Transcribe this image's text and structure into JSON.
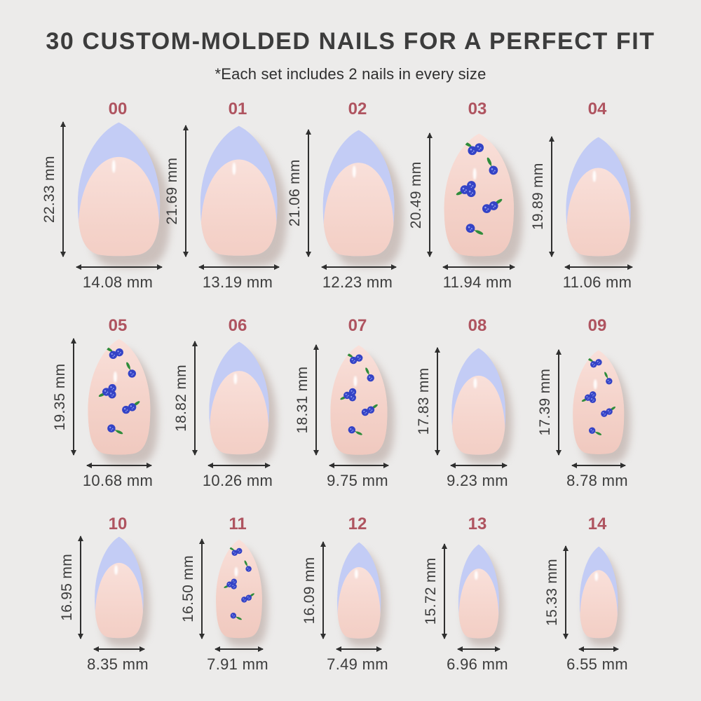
{
  "page": {
    "title": "30 CUSTOM-MOLDED NAILS FOR A PERFECT FIT",
    "subtitle": "*Each set includes 2 nails in every size"
  },
  "colors": {
    "background": "#ECEBEA",
    "title_text": "#3C3C3C",
    "size_number": "#AF5460",
    "measure_text": "#3C3C3C",
    "arrow": "#2F2F2F",
    "french_tip_lavender": "#C3CCF5",
    "nail_pink_light": "#F9E0DA",
    "nail_pink_deep": "#F0C9BF",
    "shadow": "#AC968F",
    "blueberry_blue": "#3443C6",
    "blueberry_speck": "#93A0F0",
    "leaf_green": "#2F8C3B"
  },
  "sizes": [
    {
      "label": "00",
      "height_mm": 22.33,
      "width_mm": 14.08,
      "height_text": "22.33 mm",
      "width_text": "14.08 mm",
      "design": "french-tip"
    },
    {
      "label": "01",
      "height_mm": 21.69,
      "width_mm": 13.19,
      "height_text": "21.69 mm",
      "width_text": "13.19 mm",
      "design": "french-tip"
    },
    {
      "label": "02",
      "height_mm": 21.06,
      "width_mm": 12.23,
      "height_text": "21.06 mm",
      "width_text": "12.23 mm",
      "design": "french-tip"
    },
    {
      "label": "03",
      "height_mm": 20.49,
      "width_mm": 11.94,
      "height_text": "20.49 mm",
      "width_text": "11.94 mm",
      "design": "blueberry"
    },
    {
      "label": "04",
      "height_mm": 19.89,
      "width_mm": 11.06,
      "height_text": "19.89 mm",
      "width_text": "11.06 mm",
      "design": "french-tip"
    },
    {
      "label": "05",
      "height_mm": 19.35,
      "width_mm": 10.68,
      "height_text": "19.35 mm",
      "width_text": "10.68 mm",
      "design": "blueberry"
    },
    {
      "label": "06",
      "height_mm": 18.82,
      "width_mm": 10.26,
      "height_text": "18.82 mm",
      "width_text": "10.26 mm",
      "design": "french-tip"
    },
    {
      "label": "07",
      "height_mm": 18.31,
      "width_mm": 9.75,
      "height_text": "18.31 mm",
      "width_text": "9.75 mm",
      "design": "blueberry"
    },
    {
      "label": "08",
      "height_mm": 17.83,
      "width_mm": 9.23,
      "height_text": "17.83 mm",
      "width_text": "9.23 mm",
      "design": "french-tip"
    },
    {
      "label": "09",
      "height_mm": 17.39,
      "width_mm": 8.78,
      "height_text": "17.39 mm",
      "width_text": "8.78 mm",
      "design": "blueberry"
    },
    {
      "label": "10",
      "height_mm": 16.95,
      "width_mm": 8.35,
      "height_text": "16.95 mm",
      "width_text": "8.35 mm",
      "design": "french-tip"
    },
    {
      "label": "11",
      "height_mm": 16.5,
      "width_mm": 7.91,
      "height_text": "16.50 mm",
      "width_text": "7.91 mm",
      "design": "blueberry"
    },
    {
      "label": "12",
      "height_mm": 16.09,
      "width_mm": 7.49,
      "height_text": "16.09 mm",
      "width_text": "7.49 mm",
      "design": "french-tip"
    },
    {
      "label": "13",
      "height_mm": 15.72,
      "width_mm": 6.96,
      "height_text": "15.72 mm",
      "width_text": "6.96 mm",
      "design": "french-tip"
    },
    {
      "label": "14",
      "height_mm": 15.33,
      "width_mm": 6.55,
      "height_text": "15.33 mm",
      "width_text": "6.55 mm",
      "design": "french-tip"
    }
  ],
  "chart_data": {
    "type": "table",
    "title": "30 CUSTOM-MOLDED NAILS FOR A PERFECT FIT",
    "note": "*Each set includes 2 nails in every size",
    "columns": [
      "size",
      "length_mm",
      "width_mm",
      "design"
    ],
    "rows": [
      [
        "00",
        22.33,
        14.08,
        "french-tip"
      ],
      [
        "01",
        21.69,
        13.19,
        "french-tip"
      ],
      [
        "02",
        21.06,
        12.23,
        "french-tip"
      ],
      [
        "03",
        20.49,
        11.94,
        "blueberry"
      ],
      [
        "04",
        19.89,
        11.06,
        "french-tip"
      ],
      [
        "05",
        19.35,
        10.68,
        "blueberry"
      ],
      [
        "06",
        18.82,
        10.26,
        "french-tip"
      ],
      [
        "07",
        18.31,
        9.75,
        "blueberry"
      ],
      [
        "08",
        17.83,
        9.23,
        "french-tip"
      ],
      [
        "09",
        17.39,
        8.78,
        "blueberry"
      ],
      [
        "10",
        16.95,
        8.35,
        "french-tip"
      ],
      [
        "11",
        16.5,
        7.91,
        "blueberry"
      ],
      [
        "12",
        16.09,
        7.49,
        "french-tip"
      ],
      [
        "13",
        15.72,
        6.96,
        "french-tip"
      ],
      [
        "14",
        15.33,
        6.55,
        "french-tip"
      ]
    ]
  }
}
